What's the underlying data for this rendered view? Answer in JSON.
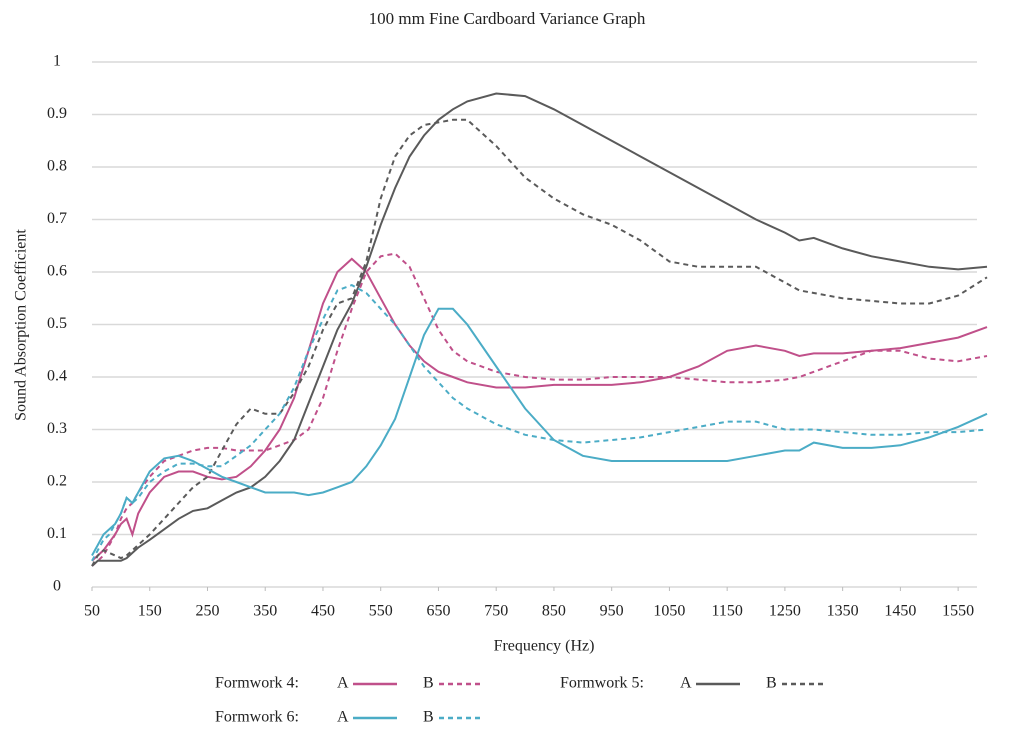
{
  "chart_data": {
    "type": "line",
    "title": "100 mm Fine Cardboard Variance Graph",
    "x_label": "Frequency (Hz)",
    "y_label": "Sound Absorption Coefficient",
    "x": [
      50,
      60,
      70,
      80,
      90,
      100,
      110,
      120,
      130,
      150,
      175,
      200,
      225,
      250,
      275,
      300,
      325,
      350,
      375,
      400,
      425,
      450,
      475,
      500,
      525,
      550,
      575,
      600,
      625,
      650,
      675,
      700,
      750,
      800,
      850,
      900,
      950,
      1000,
      1050,
      1100,
      1150,
      1200,
      1250,
      1275,
      1300,
      1350,
      1400,
      1450,
      1500,
      1550,
      1600
    ],
    "xlim": [
      50,
      1600
    ],
    "xticks": [
      50,
      150,
      250,
      350,
      450,
      550,
      650,
      750,
      850,
      950,
      1050,
      1150,
      1250,
      1350,
      1450,
      1550
    ],
    "ylim": [
      0,
      1
    ],
    "yticks": [
      0,
      0.1,
      0.2,
      0.3,
      0.4,
      0.5,
      0.6,
      0.7,
      0.8,
      0.9,
      1
    ],
    "grid": true,
    "groups": [
      {
        "name": "Formwork 4:",
        "series": [
          {
            "name": "A",
            "color": "#c0508a",
            "dashed": false,
            "values": [
              0.05,
              0.06,
              0.07,
              0.085,
              0.1,
              0.12,
              0.13,
              0.1,
              0.14,
              0.18,
              0.21,
              0.22,
              0.22,
              0.21,
              0.205,
              0.21,
              0.23,
              0.26,
              0.3,
              0.36,
              0.45,
              0.54,
              0.6,
              0.625,
              0.6,
              0.55,
              0.5,
              0.46,
              0.43,
              0.41,
              0.4,
              0.39,
              0.38,
              0.38,
              0.385,
              0.385,
              0.385,
              0.39,
              0.4,
              0.42,
              0.45,
              0.46,
              0.45,
              0.44,
              0.445,
              0.445,
              0.45,
              0.455,
              0.465,
              0.475,
              0.495
            ]
          },
          {
            "name": "B",
            "color": "#c0508a",
            "dashed": true,
            "values": [
              0.04,
              0.05,
              0.06,
              0.08,
              0.1,
              0.13,
              0.15,
              0.16,
              0.18,
              0.21,
              0.24,
              0.25,
              0.26,
              0.265,
              0.265,
              0.26,
              0.26,
              0.26,
              0.27,
              0.28,
              0.3,
              0.36,
              0.45,
              0.53,
              0.6,
              0.63,
              0.635,
              0.61,
              0.55,
              0.49,
              0.45,
              0.43,
              0.41,
              0.4,
              0.395,
              0.395,
              0.4,
              0.4,
              0.4,
              0.395,
              0.39,
              0.39,
              0.395,
              0.4,
              0.41,
              0.43,
              0.45,
              0.45,
              0.435,
              0.43,
              0.44
            ]
          }
        ]
      },
      {
        "name": "Formwork 5:",
        "series": [
          {
            "name": "A",
            "color": "#5a5a5a",
            "dashed": false,
            "values": [
              0.04,
              0.05,
              0.05,
              0.05,
              0.05,
              0.05,
              0.055,
              0.065,
              0.075,
              0.09,
              0.11,
              0.13,
              0.145,
              0.15,
              0.165,
              0.18,
              0.19,
              0.21,
              0.24,
              0.28,
              0.35,
              0.42,
              0.49,
              0.54,
              0.61,
              0.69,
              0.76,
              0.82,
              0.86,
              0.89,
              0.91,
              0.925,
              0.94,
              0.935,
              0.91,
              0.88,
              0.85,
              0.82,
              0.79,
              0.76,
              0.73,
              0.7,
              0.675,
              0.66,
              0.665,
              0.645,
              0.63,
              0.62,
              0.61,
              0.605,
              0.61
            ]
          },
          {
            "name": "B",
            "color": "#5a5a5a",
            "dashed": true,
            "values": [
              0.04,
              0.06,
              0.07,
              0.065,
              0.06,
              0.055,
              0.06,
              0.07,
              0.08,
              0.1,
              0.13,
              0.16,
              0.19,
              0.21,
              0.26,
              0.31,
              0.34,
              0.33,
              0.33,
              0.37,
              0.42,
              0.49,
              0.54,
              0.55,
              0.62,
              0.74,
              0.82,
              0.86,
              0.88,
              0.885,
              0.89,
              0.89,
              0.84,
              0.78,
              0.74,
              0.71,
              0.69,
              0.66,
              0.62,
              0.61,
              0.61,
              0.61,
              0.58,
              0.565,
              0.56,
              0.55,
              0.545,
              0.54,
              0.54,
              0.555,
              0.59
            ]
          }
        ]
      },
      {
        "name": "Formwork 6:",
        "series": [
          {
            "name": "A",
            "color": "#4bacc6",
            "dashed": false,
            "values": [
              0.06,
              0.08,
              0.1,
              0.11,
              0.12,
              0.14,
              0.17,
              0.16,
              0.18,
              0.22,
              0.245,
              0.25,
              0.24,
              0.225,
              0.21,
              0.2,
              0.19,
              0.18,
              0.18,
              0.18,
              0.175,
              0.18,
              0.19,
              0.2,
              0.23,
              0.27,
              0.32,
              0.4,
              0.48,
              0.53,
              0.53,
              0.5,
              0.42,
              0.34,
              0.28,
              0.25,
              0.24,
              0.24,
              0.24,
              0.24,
              0.24,
              0.25,
              0.26,
              0.26,
              0.275,
              0.265,
              0.265,
              0.27,
              0.285,
              0.305,
              0.33
            ]
          },
          {
            "name": "B",
            "color": "#4bacc6",
            "dashed": true,
            "values": [
              0.05,
              0.07,
              0.09,
              0.1,
              0.12,
              0.14,
              0.17,
              0.16,
              0.17,
              0.2,
              0.22,
              0.235,
              0.235,
              0.23,
              0.23,
              0.25,
              0.27,
              0.3,
              0.33,
              0.38,
              0.45,
              0.51,
              0.565,
              0.575,
              0.56,
              0.53,
              0.5,
              0.46,
              0.42,
              0.39,
              0.36,
              0.34,
              0.31,
              0.29,
              0.28,
              0.275,
              0.28,
              0.285,
              0.295,
              0.305,
              0.315,
              0.315,
              0.3,
              0.3,
              0.3,
              0.295,
              0.29,
              0.29,
              0.295,
              0.295,
              0.3
            ]
          }
        ]
      }
    ]
  }
}
